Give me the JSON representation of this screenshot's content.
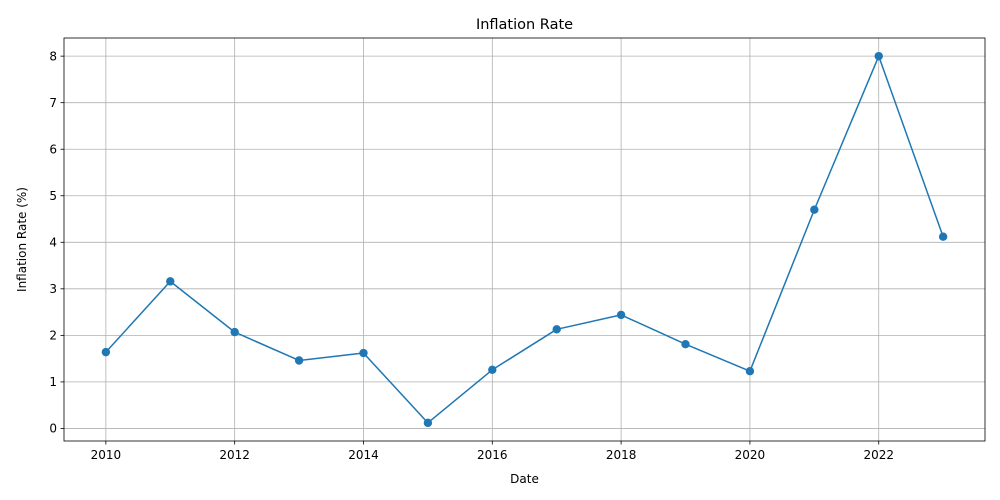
{
  "chart_data": {
    "type": "line",
    "title": "Inflation Rate",
    "xlabel": "Date",
    "ylabel": "Inflation Rate (%)",
    "x": [
      2010,
      2011,
      2012,
      2013,
      2014,
      2015,
      2016,
      2017,
      2018,
      2019,
      2020,
      2021,
      2022,
      2023
    ],
    "series": [
      {
        "values": [
          1.64,
          3.16,
          2.07,
          1.46,
          1.62,
          0.12,
          1.26,
          2.13,
          2.44,
          1.81,
          1.23,
          4.7,
          8.0,
          4.12
        ]
      }
    ],
    "xticks": [
      "2010",
      "2012",
      "2014",
      "2016",
      "2018",
      "2020",
      "2022"
    ],
    "yticks": [
      "0",
      "1",
      "2",
      "3",
      "4",
      "5",
      "6",
      "7",
      "8"
    ],
    "xlim": [
      2009.35,
      2023.65
    ],
    "ylim": [
      -0.27,
      8.39
    ],
    "grid": true,
    "markers": true,
    "colors": {
      "line": "#1f77b4",
      "grid": "#b0b0b0",
      "axes": "#000000"
    }
  }
}
